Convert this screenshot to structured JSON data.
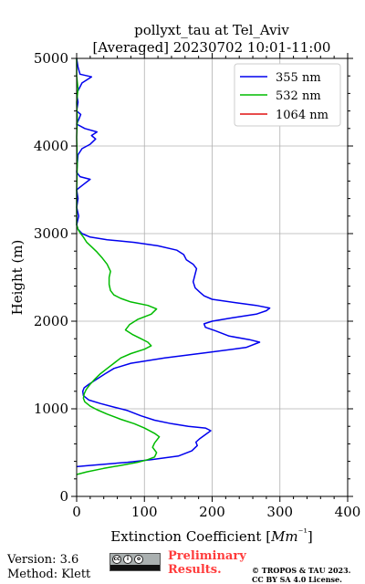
{
  "chart_data": {
    "type": "line",
    "title": "pollyxt_tau at Tel_Aviv",
    "subtitle": "[Averaged] 20230702 10:01-11:00",
    "xlabel": "Extinction Coefficient [Mm⁻¹]",
    "ylabel": "Height (m)",
    "xlim": [
      0,
      400
    ],
    "ylim": [
      0,
      5000
    ],
    "x_ticks": [
      0,
      100,
      200,
      300,
      400
    ],
    "y_ticks": [
      0,
      1000,
      2000,
      3000,
      4000,
      5000
    ],
    "grid": true,
    "legend_position": "top-right",
    "series": [
      {
        "name": "355 nm",
        "color": "#0000ee",
        "points": [
          [
            0,
            340
          ],
          [
            15,
            350
          ],
          [
            45,
            370
          ],
          [
            75,
            390
          ],
          [
            110,
            420
          ],
          [
            150,
            460
          ],
          [
            170,
            520
          ],
          [
            178,
            580
          ],
          [
            176,
            620
          ],
          [
            182,
            660
          ],
          [
            198,
            750
          ],
          [
            190,
            780
          ],
          [
            165,
            800
          ],
          [
            140,
            830
          ],
          [
            115,
            870
          ],
          [
            95,
            920
          ],
          [
            75,
            980
          ],
          [
            55,
            1020
          ],
          [
            35,
            1060
          ],
          [
            18,
            1100
          ],
          [
            10,
            1150
          ],
          [
            9,
            1200
          ],
          [
            11,
            1240
          ],
          [
            18,
            1280
          ],
          [
            30,
            1340
          ],
          [
            42,
            1400
          ],
          [
            55,
            1460
          ],
          [
            80,
            1520
          ],
          [
            130,
            1580
          ],
          [
            190,
            1640
          ],
          [
            250,
            1700
          ],
          [
            270,
            1760
          ],
          [
            255,
            1790
          ],
          [
            225,
            1830
          ],
          [
            205,
            1890
          ],
          [
            190,
            1930
          ],
          [
            188,
            1970
          ],
          [
            200,
            2000
          ],
          [
            230,
            2040
          ],
          [
            265,
            2080
          ],
          [
            280,
            2120
          ],
          [
            285,
            2150
          ],
          [
            265,
            2180
          ],
          [
            235,
            2210
          ],
          [
            200,
            2250
          ],
          [
            188,
            2290
          ],
          [
            182,
            2330
          ],
          [
            175,
            2380
          ],
          [
            172,
            2450
          ],
          [
            175,
            2540
          ],
          [
            177,
            2600
          ],
          [
            172,
            2650
          ],
          [
            162,
            2700
          ],
          [
            158,
            2760
          ],
          [
            148,
            2810
          ],
          [
            120,
            2860
          ],
          [
            85,
            2900
          ],
          [
            45,
            2930
          ],
          [
            20,
            2960
          ],
          [
            8,
            3000
          ],
          [
            2,
            3050
          ],
          [
            0,
            3100
          ],
          [
            3,
            3200
          ],
          [
            0,
            3300
          ],
          [
            2,
            3400
          ],
          [
            0,
            3500
          ],
          [
            10,
            3560
          ],
          [
            20,
            3620
          ],
          [
            5,
            3650
          ],
          [
            0,
            3700
          ],
          [
            2,
            3900
          ],
          [
            8,
            3970
          ],
          [
            20,
            4020
          ],
          [
            28,
            4080
          ],
          [
            22,
            4120
          ],
          [
            30,
            4160
          ],
          [
            12,
            4200
          ],
          [
            0,
            4250
          ],
          [
            3,
            4300
          ],
          [
            6,
            4360
          ],
          [
            0,
            4400
          ],
          [
            2,
            4500
          ],
          [
            0,
            4600
          ],
          [
            8,
            4720
          ],
          [
            22,
            4790
          ],
          [
            5,
            4820
          ],
          [
            2,
            4900
          ],
          [
            0,
            5000
          ]
        ]
      },
      {
        "name": "532 nm",
        "color": "#00bb00",
        "points": [
          [
            0,
            250
          ],
          [
            15,
            280
          ],
          [
            40,
            320
          ],
          [
            70,
            360
          ],
          [
            90,
            390
          ],
          [
            105,
            420
          ],
          [
            115,
            450
          ],
          [
            118,
            500
          ],
          [
            112,
            560
          ],
          [
            115,
            610
          ],
          [
            122,
            680
          ],
          [
            115,
            720
          ],
          [
            100,
            780
          ],
          [
            85,
            830
          ],
          [
            65,
            880
          ],
          [
            45,
            940
          ],
          [
            30,
            990
          ],
          [
            20,
            1030
          ],
          [
            12,
            1080
          ],
          [
            10,
            1120
          ],
          [
            11,
            1170
          ],
          [
            14,
            1220
          ],
          [
            20,
            1280
          ],
          [
            27,
            1340
          ],
          [
            35,
            1400
          ],
          [
            45,
            1460
          ],
          [
            55,
            1520
          ],
          [
            65,
            1580
          ],
          [
            80,
            1630
          ],
          [
            100,
            1680
          ],
          [
            110,
            1720
          ],
          [
            105,
            1760
          ],
          [
            95,
            1800
          ],
          [
            82,
            1850
          ],
          [
            72,
            1900
          ],
          [
            78,
            1960
          ],
          [
            90,
            2020
          ],
          [
            110,
            2080
          ],
          [
            118,
            2140
          ],
          [
            105,
            2180
          ],
          [
            80,
            2220
          ],
          [
            65,
            2260
          ],
          [
            55,
            2300
          ],
          [
            50,
            2350
          ],
          [
            48,
            2420
          ],
          [
            48,
            2500
          ],
          [
            50,
            2570
          ],
          [
            45,
            2650
          ],
          [
            38,
            2720
          ],
          [
            30,
            2790
          ],
          [
            22,
            2850
          ],
          [
            15,
            2900
          ],
          [
            10,
            2960
          ],
          [
            5,
            3010
          ],
          [
            2,
            3050
          ],
          [
            0,
            3100
          ],
          [
            0,
            3500
          ],
          [
            1,
            3800
          ],
          [
            0,
            4100
          ],
          [
            1,
            4300
          ],
          [
            0,
            4500
          ],
          [
            2,
            4650
          ],
          [
            0,
            4800
          ],
          [
            0,
            5000
          ]
        ]
      },
      {
        "name": "1064 nm",
        "color": "#e01010",
        "points": []
      }
    ]
  },
  "footer": {
    "version": "Version: 3.6",
    "method": "Method: Klett",
    "license_badge": "cc-by-sa-badge",
    "preliminary_line1": "Preliminary",
    "preliminary_line2": "Results.",
    "copyright_line1": "© TROPOS & TAU 2023.",
    "copyright_line2": "CC BY SA 4.0 License."
  }
}
